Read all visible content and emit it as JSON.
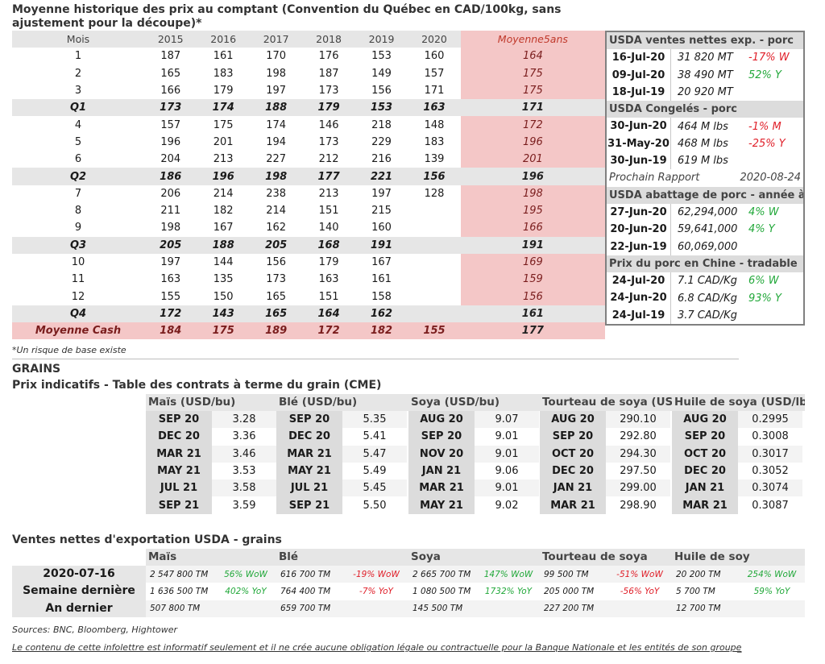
{
  "title": "Moyenne historique des prix au comptant (Convention du Québec en CAD/100kg, sans ajustement pour la découpe)*",
  "hist": {
    "headers": [
      "Mois",
      "2015",
      "2016",
      "2017",
      "2018",
      "2019",
      "2020",
      "Moyenne5ans"
    ],
    "rows": [
      {
        "type": "m",
        "cells": [
          "1",
          "187",
          "161",
          "170",
          "176",
          "153",
          "160",
          "164"
        ]
      },
      {
        "type": "m",
        "cells": [
          "2",
          "165",
          "183",
          "198",
          "187",
          "149",
          "157",
          "175"
        ]
      },
      {
        "type": "m",
        "cells": [
          "3",
          "166",
          "179",
          "197",
          "173",
          "156",
          "171",
          "175"
        ]
      },
      {
        "type": "q",
        "cells": [
          "Q1",
          "173",
          "174",
          "188",
          "179",
          "153",
          "163",
          "171"
        ]
      },
      {
        "type": "m",
        "cells": [
          "4",
          "157",
          "175",
          "174",
          "146",
          "218",
          "148",
          "172"
        ]
      },
      {
        "type": "m",
        "cells": [
          "5",
          "196",
          "201",
          "194",
          "173",
          "229",
          "183",
          "196"
        ]
      },
      {
        "type": "m",
        "cells": [
          "6",
          "204",
          "213",
          "227",
          "212",
          "216",
          "139",
          "201"
        ]
      },
      {
        "type": "q",
        "cells": [
          "Q2",
          "186",
          "196",
          "198",
          "177",
          "221",
          "156",
          "196"
        ]
      },
      {
        "type": "m",
        "cells": [
          "7",
          "206",
          "214",
          "238",
          "213",
          "197",
          "128",
          "198"
        ]
      },
      {
        "type": "m",
        "cells": [
          "8",
          "211",
          "182",
          "214",
          "151",
          "215",
          "",
          "195"
        ]
      },
      {
        "type": "m",
        "cells": [
          "9",
          "198",
          "167",
          "162",
          "140",
          "160",
          "",
          "166"
        ]
      },
      {
        "type": "q",
        "cells": [
          "Q3",
          "205",
          "188",
          "205",
          "168",
          "191",
          "",
          "191"
        ]
      },
      {
        "type": "m",
        "cells": [
          "10",
          "197",
          "144",
          "156",
          "179",
          "167",
          "",
          "169"
        ]
      },
      {
        "type": "m",
        "cells": [
          "11",
          "163",
          "135",
          "173",
          "163",
          "161",
          "",
          "159"
        ]
      },
      {
        "type": "m",
        "cells": [
          "12",
          "155",
          "150",
          "165",
          "151",
          "158",
          "",
          "156"
        ]
      },
      {
        "type": "q",
        "cells": [
          "Q4",
          "172",
          "143",
          "165",
          "164",
          "162",
          "",
          "161"
        ]
      },
      {
        "type": "cash",
        "cells": [
          "Moyenne Cash",
          "184",
          "175",
          "189",
          "172",
          "182",
          "155",
          "177"
        ]
      }
    ]
  },
  "side": [
    {
      "head": "USDA ventes nettes exp. - porc",
      "rows": [
        {
          "d": "16-Jul-20",
          "v": "31 820  MT",
          "p": "-17% W",
          "pc": "red"
        },
        {
          "d": "09-Jul-20",
          "v": "38 490  MT",
          "p": "52% Y",
          "pc": "green"
        },
        {
          "d": "18-Jul-19",
          "v": "20 920  MT",
          "p": "",
          "pc": ""
        }
      ]
    },
    {
      "head": "USDA Congelés - porc",
      "rows": [
        {
          "d": "30-Jun-20",
          "v": "464 M lbs",
          "p": "-1% M",
          "pc": "red"
        },
        {
          "d": "31-May-20",
          "v": "468 M lbs",
          "p": "-25% Y",
          "pc": "red"
        },
        {
          "d": "30-Jun-19",
          "v": "619 M lbs",
          "p": "",
          "pc": ""
        }
      ]
    },
    {
      "plain": true,
      "head": "Prochain Rapport",
      "right": "2020-08-24"
    },
    {
      "head": "USDA abattage de porc - année à date",
      "rows": [
        {
          "d": "27-Jun-20",
          "v": "62,294,000",
          "p": "4% W",
          "pc": "green"
        },
        {
          "d": "20-Jun-20",
          "v": "59,641,000",
          "p": "4% Y",
          "pc": "green"
        },
        {
          "d": "22-Jun-19",
          "v": "60,069,000",
          "p": "",
          "pc": ""
        }
      ]
    },
    {
      "head": "Prix du porc en Chine - tradable",
      "rows": [
        {
          "d": "24-Jul-20",
          "v": "7.1 CAD/Kg",
          "p": "6% W",
          "pc": "green"
        },
        {
          "d": "24-Jun-20",
          "v": "6.8 CAD/Kg",
          "p": "93% Y",
          "pc": "green"
        },
        {
          "d": "24-Jul-19",
          "v": "3.7 CAD/Kg",
          "p": "",
          "pc": ""
        }
      ]
    }
  ],
  "note": "*Un risque de base existe",
  "grains_title": "GRAINS",
  "futures_title": "Prix indicatifs - Table des contrats à terme du grain (CME)",
  "futures": [
    {
      "head": "Maïs (USD/bu)",
      "rows": [
        [
          "SEP 20",
          "3.28"
        ],
        [
          "DEC 20",
          "3.36"
        ],
        [
          "MAR 21",
          "3.46"
        ],
        [
          "MAY 21",
          "3.53"
        ],
        [
          "JUL 21",
          "3.58"
        ],
        [
          "SEP 21",
          "3.59"
        ]
      ]
    },
    {
      "head": "Blé (USD/bu)",
      "rows": [
        [
          "SEP 20",
          "5.35"
        ],
        [
          "DEC 20",
          "5.41"
        ],
        [
          "MAR 21",
          "5.47"
        ],
        [
          "MAY 21",
          "5.49"
        ],
        [
          "JUL 21",
          "5.45"
        ],
        [
          "SEP 21",
          "5.50"
        ]
      ]
    },
    {
      "head": "Soya (USD/bu)",
      "rows": [
        [
          "AUG 20",
          "9.07"
        ],
        [
          "SEP 20",
          "9.01"
        ],
        [
          "NOV 20",
          "9.01"
        ],
        [
          "JAN 21",
          "9.06"
        ],
        [
          "MAR 21",
          "9.01"
        ],
        [
          "MAY 21",
          "9.02"
        ]
      ]
    },
    {
      "head": "Tourteau de soya (USD/ST",
      "rows": [
        [
          "AUG 20",
          "290.10"
        ],
        [
          "SEP 20",
          "292.80"
        ],
        [
          "OCT 20",
          "294.30"
        ],
        [
          "DEC 20",
          "297.50"
        ],
        [
          "JAN 21",
          "299.00"
        ],
        [
          "MAR 21",
          "298.90"
        ]
      ]
    },
    {
      "head": "Huile de soya (USD/lb)",
      "rows": [
        [
          "AUG 20",
          "0.2995"
        ],
        [
          "SEP 20",
          "0.3008"
        ],
        [
          "OCT 20",
          "0.3017"
        ],
        [
          "DEC 20",
          "0.3052"
        ],
        [
          "JAN 21",
          "0.3074"
        ],
        [
          "MAR 21",
          "0.3087"
        ]
      ]
    }
  ],
  "exports_title": "Ventes nettes d'exportation USDA - grains",
  "export_labels": [
    "2020-07-16",
    "Semaine dernière",
    "An dernier"
  ],
  "exports": [
    {
      "head": "Maïs",
      "rows": [
        [
          "2 547 800 TM",
          "56% WoW",
          "green"
        ],
        [
          "1 636 500 TM",
          "402% YoY",
          "green"
        ],
        [
          "507 800 TM",
          "",
          ""
        ]
      ]
    },
    {
      "head": "Blé",
      "rows": [
        [
          "616 700 TM",
          "-19% WoW",
          "red"
        ],
        [
          "764 400 TM",
          "-7% YoY",
          "red"
        ],
        [
          "659 700 TM",
          "",
          ""
        ]
      ]
    },
    {
      "head": "Soya",
      "rows": [
        [
          "2 665 700 TM",
          "147% WoW",
          "green"
        ],
        [
          "1 080 500 TM",
          "1732% YoY",
          "green"
        ],
        [
          "145 500 TM",
          "",
          ""
        ]
      ]
    },
    {
      "head": "Tourteau de soya",
      "rows": [
        [
          "99 500 TM",
          "-51% WoW",
          "red"
        ],
        [
          "205 000 TM",
          "-56% YoY",
          "red"
        ],
        [
          "227 200 TM",
          "",
          ""
        ]
      ]
    },
    {
      "head": "Huile de soy",
      "rows": [
        [
          "20 200 TM",
          "254% WoW",
          "green"
        ],
        [
          "5 700 TM",
          "59% YoY",
          "green"
        ],
        [
          "12 700 TM",
          "",
          ""
        ]
      ]
    }
  ],
  "sources": "Sources: BNC, Bloomberg, Hightower",
  "disclaimer": "Le contenu de cette infolettre est informatif seulement et il ne crée aucune obligation légale ou contractuelle pour la Banque Nationale et les entités de son groupe"
}
